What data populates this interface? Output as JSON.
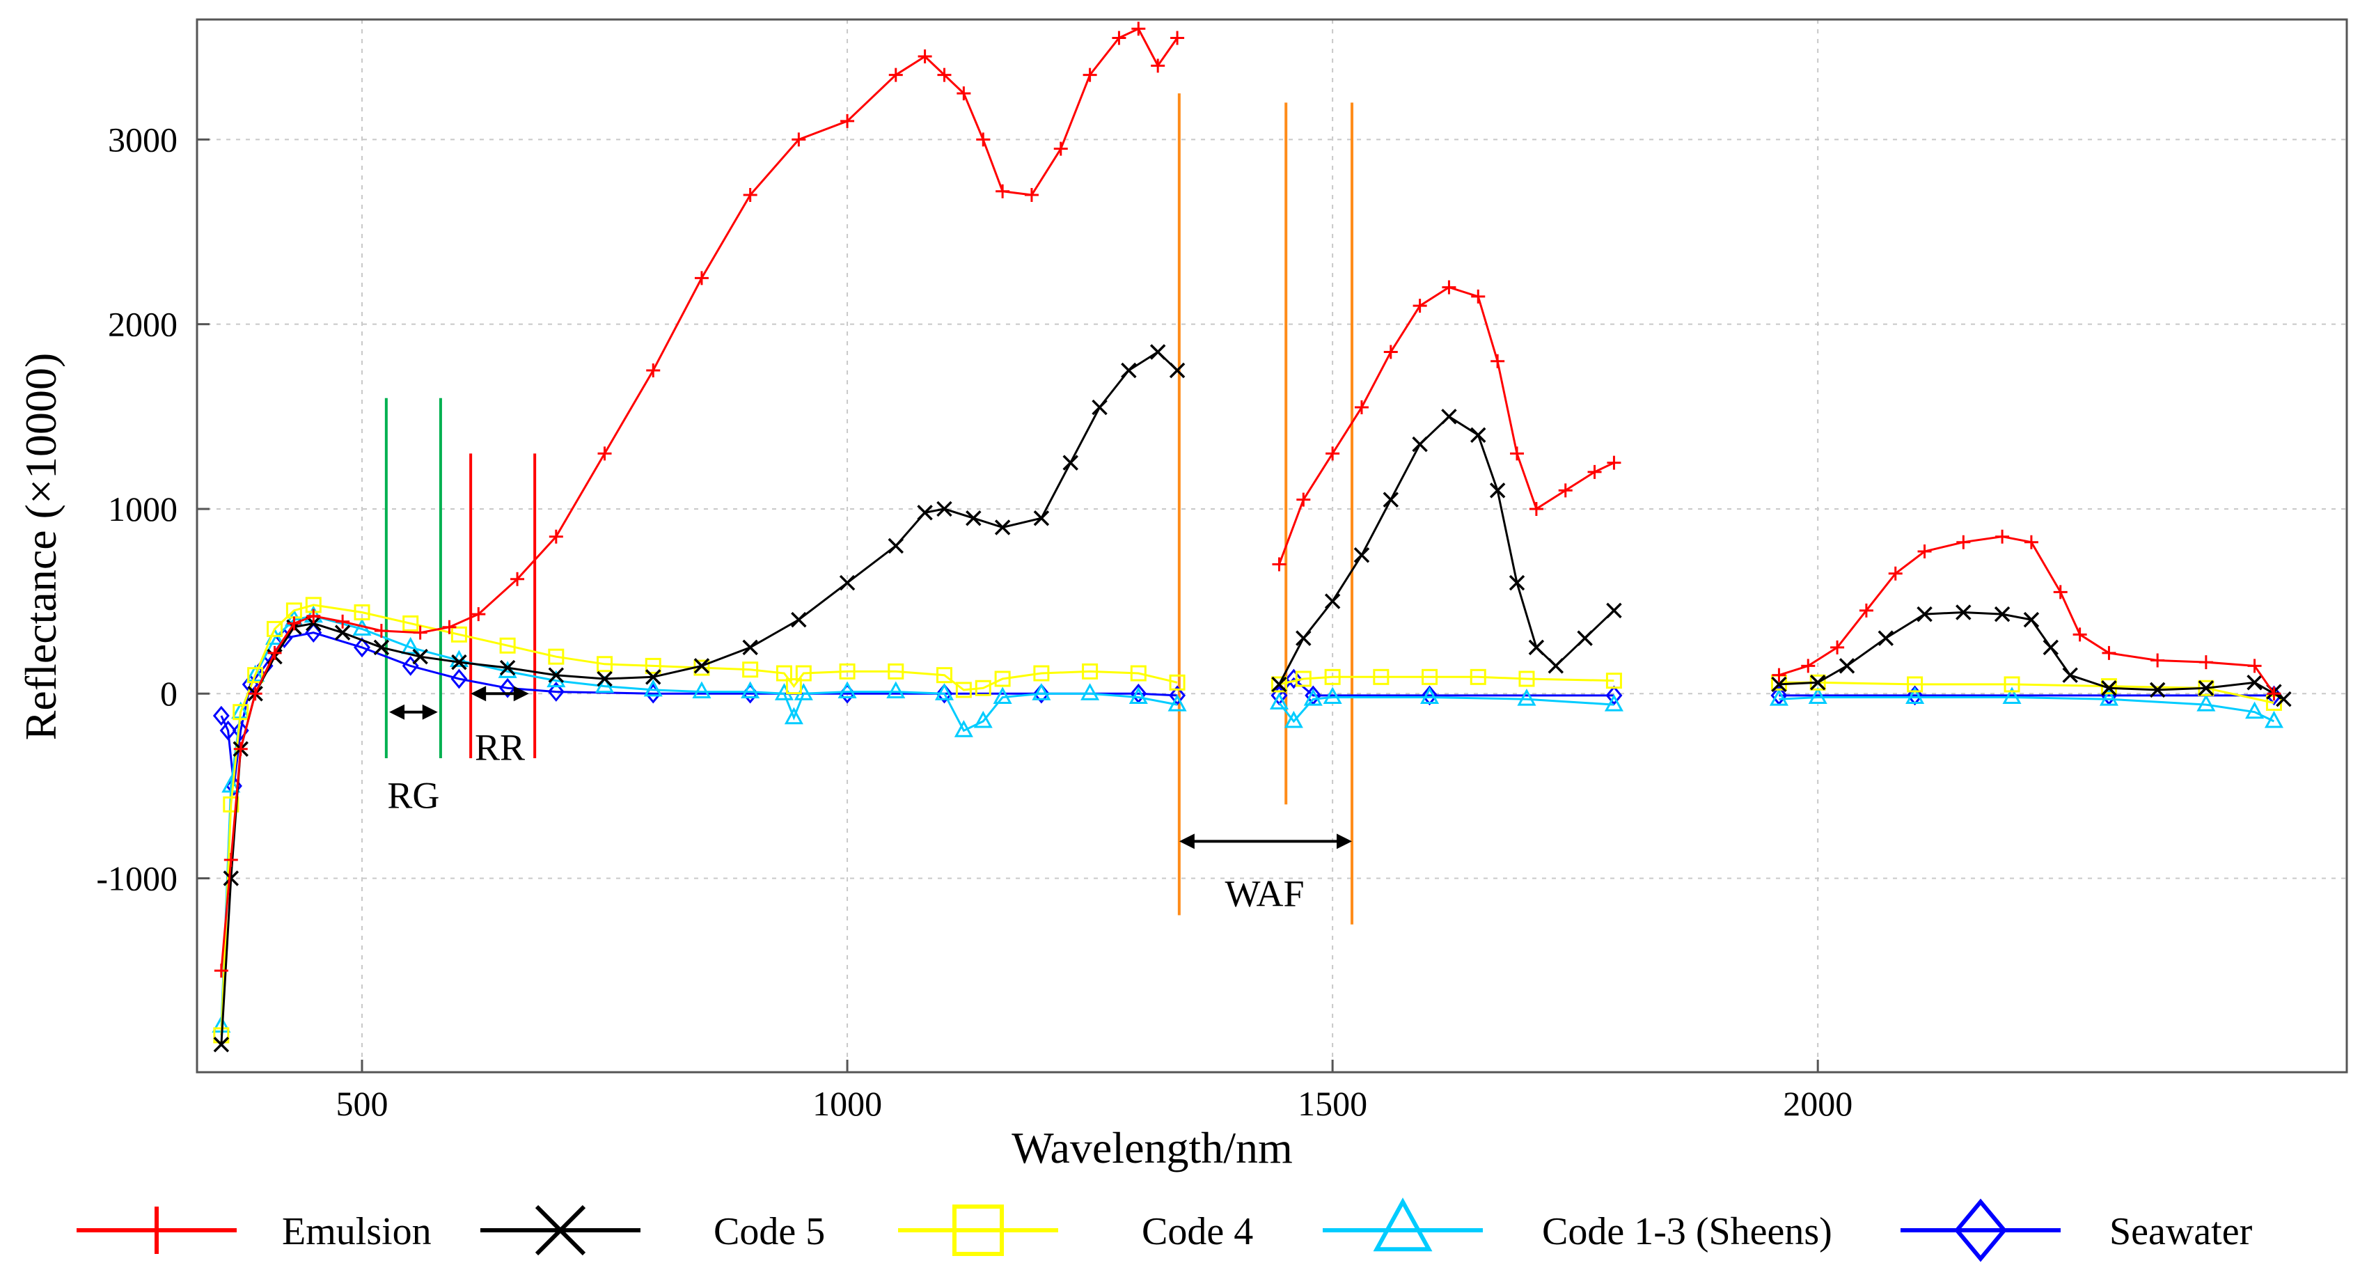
{
  "chart_data": {
    "type": "line",
    "title": "",
    "xlabel": "Wavelength/nm",
    "ylabel": "Reflectance (×10000)",
    "xlim": [
      330,
      2545
    ],
    "ylim": [
      -2050,
      3650
    ],
    "x_ticks": [
      500,
      1000,
      1500,
      2000
    ],
    "y_ticks": [
      -1000,
      0,
      1000,
      2000,
      3000
    ],
    "x_tick_labels": [
      "500",
      "1000",
      "1500",
      "2000"
    ],
    "y_tick_labels": [
      "-1000",
      "0",
      "1000",
      "2000",
      "3000"
    ],
    "legend_position": "bottom",
    "series": [
      {
        "name": "Emulsion",
        "color": "#ff0000",
        "marker": "plus",
        "segments": [
          [
            [
              355,
              -1500
            ],
            [
              365,
              -900
            ],
            [
              375,
              -300
            ],
            [
              390,
              0
            ],
            [
              410,
              220
            ],
            [
              430,
              380
            ],
            [
              450,
              420
            ],
            [
              480,
              390
            ],
            [
              520,
              340
            ],
            [
              560,
              330
            ],
            [
              590,
              360
            ],
            [
              620,
              430
            ],
            [
              660,
              620
            ],
            [
              700,
              850
            ],
            [
              750,
              1300
            ],
            [
              800,
              1750
            ],
            [
              850,
              2250
            ],
            [
              900,
              2700
            ],
            [
              950,
              3000
            ],
            [
              1000,
              3100
            ],
            [
              1050,
              3350
            ],
            [
              1080,
              3450
            ],
            [
              1100,
              3350
            ],
            [
              1120,
              3250
            ],
            [
              1140,
              3000
            ],
            [
              1160,
              2720
            ],
            [
              1190,
              2700
            ],
            [
              1220,
              2950
            ],
            [
              1250,
              3350
            ],
            [
              1280,
              3550
            ],
            [
              1300,
              3600
            ],
            [
              1320,
              3400
            ],
            [
              1340,
              3550
            ]
          ],
          [
            [
              1445,
              700
            ],
            [
              1470,
              1050
            ],
            [
              1500,
              1300
            ],
            [
              1530,
              1550
            ],
            [
              1560,
              1850
            ],
            [
              1590,
              2100
            ],
            [
              1620,
              2200
            ],
            [
              1650,
              2150
            ],
            [
              1670,
              1800
            ],
            [
              1690,
              1300
            ],
            [
              1710,
              1000
            ],
            [
              1740,
              1100
            ],
            [
              1770,
              1200
            ],
            [
              1790,
              1250
            ]
          ],
          [
            [
              1960,
              100
            ],
            [
              1990,
              150
            ],
            [
              2020,
              250
            ],
            [
              2050,
              450
            ],
            [
              2080,
              650
            ],
            [
              2110,
              770
            ],
            [
              2150,
              820
            ],
            [
              2190,
              850
            ],
            [
              2220,
              820
            ],
            [
              2250,
              550
            ],
            [
              2270,
              320
            ],
            [
              2300,
              220
            ],
            [
              2350,
              180
            ],
            [
              2400,
              170
            ],
            [
              2450,
              150
            ],
            [
              2470,
              0
            ]
          ]
        ]
      },
      {
        "name": "Code 5",
        "color": "#000000",
        "marker": "x",
        "segments": [
          [
            [
              355,
              -1900
            ],
            [
              365,
              -1000
            ],
            [
              375,
              -300
            ],
            [
              390,
              0
            ],
            [
              410,
              200
            ],
            [
              430,
              360
            ],
            [
              450,
              380
            ],
            [
              480,
              330
            ],
            [
              520,
              250
            ],
            [
              560,
              200
            ],
            [
              600,
              170
            ],
            [
              650,
              140
            ],
            [
              700,
              100
            ],
            [
              750,
              80
            ],
            [
              800,
              90
            ],
            [
              850,
              150
            ],
            [
              900,
              250
            ],
            [
              950,
              400
            ],
            [
              1000,
              600
            ],
            [
              1050,
              800
            ],
            [
              1080,
              980
            ],
            [
              1100,
              1000
            ],
            [
              1130,
              950
            ],
            [
              1160,
              900
            ],
            [
              1200,
              950
            ],
            [
              1230,
              1250
            ],
            [
              1260,
              1550
            ],
            [
              1290,
              1750
            ],
            [
              1320,
              1850
            ],
            [
              1340,
              1750
            ]
          ],
          [
            [
              1445,
              50
            ],
            [
              1470,
              300
            ],
            [
              1500,
              500
            ],
            [
              1530,
              750
            ],
            [
              1560,
              1050
            ],
            [
              1590,
              1350
            ],
            [
              1620,
              1500
            ],
            [
              1650,
              1400
            ],
            [
              1670,
              1100
            ],
            [
              1690,
              600
            ],
            [
              1710,
              250
            ],
            [
              1730,
              150
            ],
            [
              1760,
              300
            ],
            [
              1790,
              450
            ]
          ],
          [
            [
              1960,
              50
            ],
            [
              2000,
              60
            ],
            [
              2030,
              150
            ],
            [
              2070,
              300
            ],
            [
              2110,
              430
            ],
            [
              2150,
              440
            ],
            [
              2190,
              430
            ],
            [
              2220,
              400
            ],
            [
              2240,
              250
            ],
            [
              2260,
              100
            ],
            [
              2300,
              30
            ],
            [
              2350,
              20
            ],
            [
              2400,
              30
            ],
            [
              2450,
              60
            ],
            [
              2480,
              -30
            ],
            [
              2470,
              10
            ]
          ]
        ]
      },
      {
        "name": "Code 4",
        "color": "#ffff00",
        "marker": "square",
        "segments": [
          [
            [
              355,
              -1850
            ],
            [
              365,
              -600
            ],
            [
              375,
              -100
            ],
            [
              390,
              100
            ],
            [
              410,
              350
            ],
            [
              430,
              450
            ],
            [
              450,
              480
            ],
            [
              500,
              440
            ],
            [
              550,
              380
            ],
            [
              600,
              320
            ],
            [
              650,
              260
            ],
            [
              700,
              200
            ],
            [
              750,
              160
            ],
            [
              800,
              150
            ],
            [
              850,
              140
            ],
            [
              900,
              130
            ],
            [
              935,
              110
            ],
            [
              945,
              40
            ],
            [
              955,
              110
            ],
            [
              1000,
              120
            ],
            [
              1050,
              120
            ],
            [
              1100,
              100
            ],
            [
              1120,
              20
            ],
            [
              1140,
              30
            ],
            [
              1160,
              80
            ],
            [
              1200,
              110
            ],
            [
              1250,
              120
            ],
            [
              1300,
              110
            ],
            [
              1340,
              60
            ]
          ],
          [
            [
              1445,
              50
            ],
            [
              1470,
              80
            ],
            [
              1500,
              90
            ],
            [
              1550,
              90
            ],
            [
              1600,
              90
            ],
            [
              1650,
              90
            ],
            [
              1700,
              80
            ],
            [
              1790,
              70
            ]
          ],
          [
            [
              1960,
              60
            ],
            [
              2000,
              60
            ],
            [
              2100,
              50
            ],
            [
              2200,
              50
            ],
            [
              2300,
              40
            ],
            [
              2400,
              30
            ],
            [
              2470,
              -50
            ]
          ]
        ]
      },
      {
        "name": "Code 1-3 (Sheens)",
        "color": "#00ccff",
        "marker": "triangle",
        "segments": [
          [
            [
              355,
              -1800
            ],
            [
              365,
              -500
            ],
            [
              375,
              -100
            ],
            [
              390,
              100
            ],
            [
              410,
              300
            ],
            [
              430,
              400
            ],
            [
              450,
              420
            ],
            [
              500,
              350
            ],
            [
              550,
              250
            ],
            [
              600,
              180
            ],
            [
              650,
              120
            ],
            [
              700,
              70
            ],
            [
              750,
              40
            ],
            [
              800,
              20
            ],
            [
              850,
              10
            ],
            [
              900,
              10
            ],
            [
              935,
              0
            ],
            [
              945,
              -130
            ],
            [
              955,
              0
            ],
            [
              1000,
              10
            ],
            [
              1050,
              10
            ],
            [
              1100,
              0
            ],
            [
              1120,
              -200
            ],
            [
              1140,
              -150
            ],
            [
              1160,
              -20
            ],
            [
              1200,
              0
            ],
            [
              1250,
              0
            ],
            [
              1300,
              -20
            ],
            [
              1340,
              -60
            ]
          ],
          [
            [
              1445,
              -50
            ],
            [
              1460,
              -150
            ],
            [
              1480,
              -30
            ],
            [
              1500,
              -20
            ],
            [
              1600,
              -20
            ],
            [
              1700,
              -30
            ],
            [
              1790,
              -60
            ]
          ],
          [
            [
              1960,
              -30
            ],
            [
              2000,
              -20
            ],
            [
              2100,
              -20
            ],
            [
              2200,
              -20
            ],
            [
              2300,
              -30
            ],
            [
              2400,
              -60
            ],
            [
              2450,
              -100
            ],
            [
              2470,
              -150
            ]
          ]
        ]
      },
      {
        "name": "Seawater",
        "color": "#0000ff",
        "marker": "diamond",
        "segments": [
          [
            [
              355,
              -120
            ],
            [
              362,
              -200
            ],
            [
              368,
              -500
            ],
            [
              375,
              -200
            ],
            [
              385,
              50
            ],
            [
              400,
              150
            ],
            [
              420,
              300
            ],
            [
              450,
              330
            ],
            [
              500,
              250
            ],
            [
              550,
              150
            ],
            [
              600,
              80
            ],
            [
              650,
              30
            ],
            [
              700,
              10
            ],
            [
              800,
              0
            ],
            [
              900,
              0
            ],
            [
              1000,
              0
            ],
            [
              1100,
              0
            ],
            [
              1200,
              0
            ],
            [
              1300,
              0
            ],
            [
              1340,
              -10
            ]
          ],
          [
            [
              1445,
              -10
            ],
            [
              1460,
              80
            ],
            [
              1480,
              -10
            ],
            [
              1600,
              -10
            ],
            [
              1790,
              -10
            ]
          ],
          [
            [
              1960,
              -10
            ],
            [
              2100,
              -10
            ],
            [
              2300,
              -10
            ],
            [
              2470,
              -10
            ]
          ]
        ]
      }
    ],
    "annotations": [
      {
        "label": "RG",
        "x": 553,
        "y": -620,
        "color": "#000000",
        "arrow_from": 528,
        "arrow_to": 578,
        "arrow_y": -100
      },
      {
        "label": "RR",
        "x": 642,
        "y": -360,
        "color": "#000000",
        "arrow_from": 612,
        "arrow_to": 672,
        "arrow_y": 0
      },
      {
        "label": "WAF",
        "x": 1430,
        "y": -1150,
        "color": "#000000",
        "arrow_from": 1342,
        "arrow_to": 1520,
        "arrow_y": -800
      }
    ],
    "reference_lines": [
      {
        "x": 525,
        "y0": -350,
        "y1": 1600,
        "color": "#00b050"
      },
      {
        "x": 581,
        "y0": -350,
        "y1": 1600,
        "color": "#00b050"
      },
      {
        "x": 612,
        "y0": -350,
        "y1": 1300,
        "color": "#ff0000"
      },
      {
        "x": 678,
        "y0": -350,
        "y1": 1300,
        "color": "#ff0000"
      },
      {
        "x": 1342,
        "y0": -1200,
        "y1": 3250,
        "color": "#ff8c1a"
      },
      {
        "x": 1452,
        "y0": -600,
        "y1": 3200,
        "color": "#ff8c1a"
      },
      {
        "x": 1520,
        "y0": -1250,
        "y1": 3200,
        "color": "#ff8c1a"
      }
    ]
  }
}
